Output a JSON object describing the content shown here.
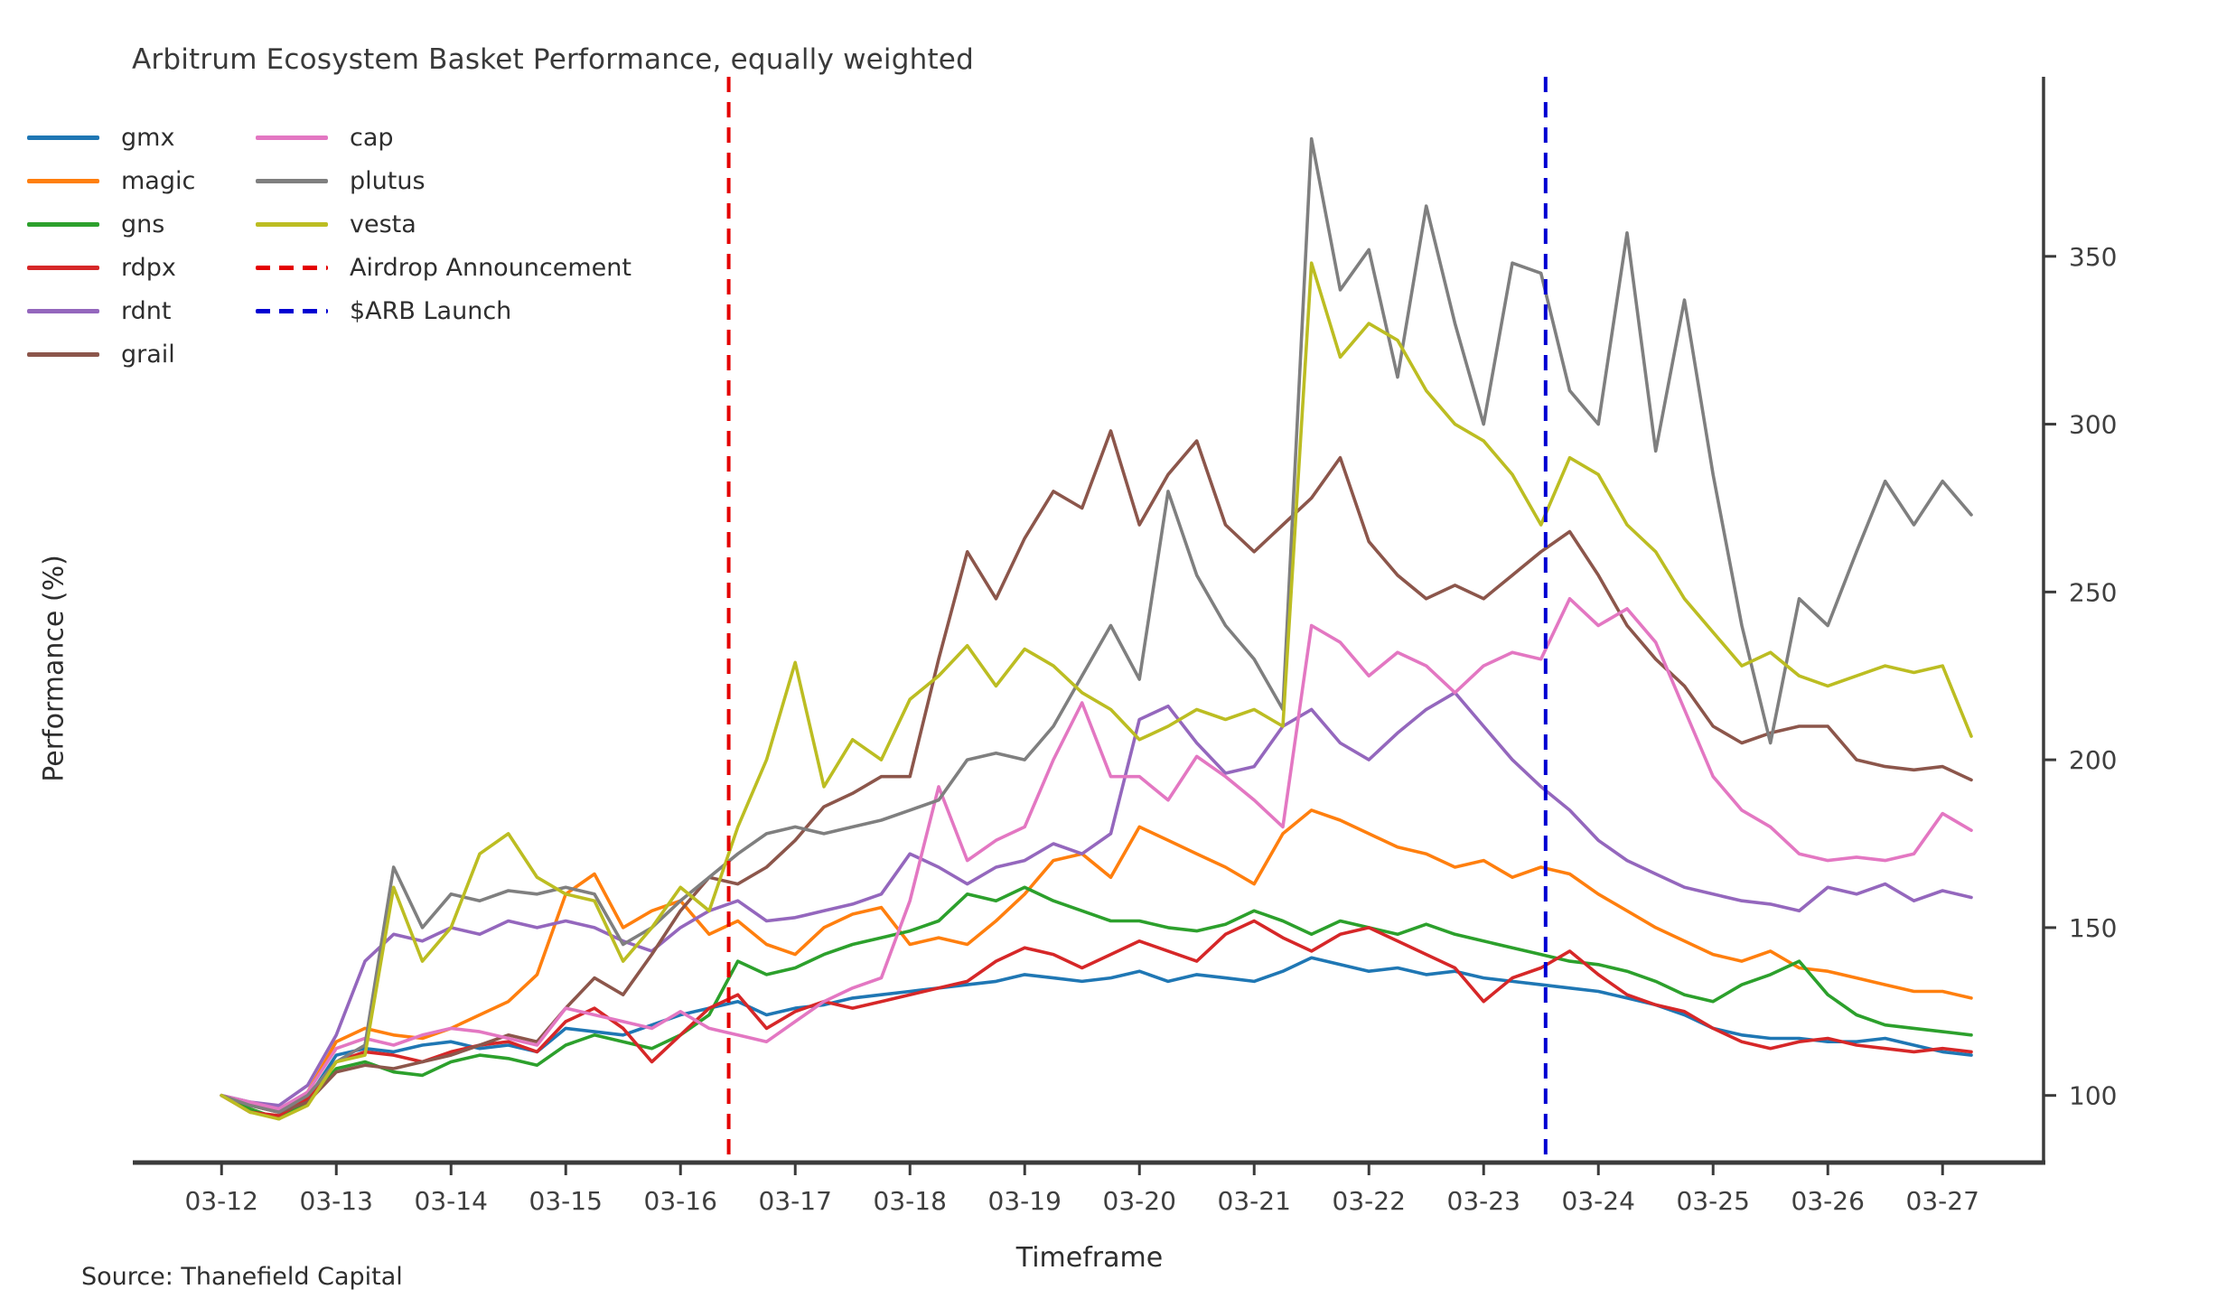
{
  "chart_data": {
    "type": "line",
    "title": "Arbitrum Ecosystem Basket Performance, equally weighted",
    "xlabel": "Timeframe",
    "ylabel": "Performance (%)",
    "source": "Source: Thanefield Capital",
    "x_tick_labels": [
      "03-12",
      "03-13",
      "03-14",
      "03-15",
      "03-16",
      "03-17",
      "03-18",
      "03-19",
      "03-20",
      "03-21",
      "03-22",
      "03-23",
      "03-24",
      "03-25",
      "03-26",
      "03-27"
    ],
    "y_tick_labels": [
      100,
      150,
      200,
      250,
      300,
      350
    ],
    "grid": false,
    "legend_position": "upper-left",
    "x_start_day": 0,
    "x_step_days": 0.25,
    "xlim_days": [
      -0.75,
      15.88
    ],
    "ylim": [
      80,
      403.5
    ],
    "axis_color": "#3b3b3b",
    "tick_label_color": "#3f3f3f",
    "series": [
      {
        "name": "gmx",
        "color": "#1f77b4",
        "values": [
          100,
          98,
          96,
          99,
          112,
          114,
          113,
          115,
          116,
          114,
          115,
          113,
          120,
          119,
          118,
          121,
          124,
          126,
          128,
          124,
          126,
          127,
          129,
          130,
          131,
          132,
          133,
          134,
          136,
          135,
          134,
          135,
          137,
          134,
          136,
          135,
          134,
          137,
          141,
          139,
          137,
          138,
          136,
          137,
          135,
          134,
          133,
          132,
          131,
          129,
          127,
          124,
          120,
          118,
          117,
          117,
          116,
          116,
          117,
          115,
          113,
          112
        ]
      },
      {
        "name": "magic",
        "color": "#ff7f0e",
        "values": [
          100,
          97,
          95,
          101,
          116,
          120,
          118,
          117,
          120,
          124,
          128,
          136,
          160,
          166,
          150,
          155,
          158,
          148,
          152,
          145,
          142,
          150,
          154,
          156,
          145,
          147,
          145,
          152,
          160,
          170,
          172,
          165,
          180,
          176,
          172,
          168,
          163,
          178,
          185,
          182,
          178,
          174,
          172,
          168,
          170,
          165,
          168,
          166,
          160,
          155,
          150,
          146,
          142,
          140,
          143,
          138,
          137,
          135,
          133,
          131,
          131,
          129
        ]
      },
      {
        "name": "gns",
        "color": "#2ca02c",
        "values": [
          100,
          96,
          93,
          98,
          108,
          110,
          107,
          106,
          110,
          112,
          111,
          109,
          115,
          118,
          116,
          114,
          118,
          124,
          140,
          136,
          138,
          142,
          145,
          147,
          149,
          152,
          160,
          158,
          162,
          158,
          155,
          152,
          152,
          150,
          149,
          151,
          155,
          152,
          148,
          152,
          150,
          148,
          151,
          148,
          146,
          144,
          142,
          140,
          139,
          137,
          134,
          130,
          128,
          133,
          136,
          140,
          130,
          124,
          121,
          120,
          119,
          118
        ]
      },
      {
        "name": "rdpx",
        "color": "#d62728",
        "values": [
          100,
          95,
          94,
          99,
          110,
          113,
          112,
          110,
          113,
          115,
          116,
          113,
          122,
          126,
          120,
          110,
          118,
          126,
          130,
          120,
          125,
          128,
          126,
          128,
          130,
          132,
          134,
          140,
          144,
          142,
          138,
          142,
          146,
          143,
          140,
          148,
          152,
          147,
          143,
          148,
          150,
          146,
          142,
          138,
          128,
          135,
          138,
          143,
          136,
          130,
          127,
          125,
          120,
          116,
          114,
          116,
          117,
          115,
          114,
          113,
          114,
          113
        ]
      },
      {
        "name": "rdnt",
        "color": "#9467bd",
        "values": [
          100,
          98,
          97,
          103,
          118,
          140,
          148,
          146,
          150,
          148,
          152,
          150,
          152,
          150,
          146,
          143,
          150,
          155,
          158,
          152,
          153,
          155,
          157,
          160,
          172,
          168,
          163,
          168,
          170,
          175,
          172,
          178,
          212,
          216,
          205,
          196,
          198,
          210,
          215,
          205,
          200,
          208,
          215,
          220,
          210,
          200,
          192,
          185,
          176,
          170,
          166,
          162,
          160,
          158,
          157,
          155,
          162,
          160,
          163,
          158,
          161,
          159
        ]
      },
      {
        "name": "grail",
        "color": "#8c564b",
        "values": [
          100,
          97,
          95,
          98,
          107,
          109,
          108,
          110,
          112,
          115,
          118,
          116,
          126,
          135,
          130,
          142,
          155,
          165,
          163,
          168,
          176,
          186,
          190,
          195,
          195,
          230,
          262,
          248,
          266,
          280,
          275,
          298,
          270,
          285,
          295,
          270,
          262,
          270,
          278,
          290,
          265,
          255,
          248,
          252,
          248,
          255,
          262,
          268,
          255,
          240,
          230,
          222,
          210,
          205,
          208,
          210,
          210,
          200,
          198,
          197,
          198,
          194
        ]
      },
      {
        "name": "cap",
        "color": "#e377c2",
        "values": [
          100,
          98,
          96,
          101,
          114,
          117,
          115,
          118,
          120,
          119,
          117,
          115,
          126,
          124,
          122,
          120,
          125,
          120,
          118,
          116,
          122,
          128,
          132,
          135,
          158,
          192,
          170,
          176,
          180,
          200,
          217,
          195,
          195,
          188,
          201,
          195,
          188,
          180,
          240,
          235,
          225,
          232,
          228,
          220,
          228,
          232,
          230,
          248,
          240,
          245,
          235,
          215,
          195,
          185,
          180,
          172,
          170,
          171,
          170,
          172,
          184,
          179
        ]
      },
      {
        "name": "plutus",
        "color": "#7f7f7f",
        "values": [
          100,
          97,
          95,
          100,
          110,
          115,
          168,
          150,
          160,
          158,
          161,
          160,
          162,
          160,
          145,
          150,
          158,
          165,
          172,
          178,
          180,
          178,
          180,
          182,
          185,
          188,
          200,
          202,
          200,
          210,
          225,
          240,
          224,
          280,
          255,
          240,
          230,
          215,
          385,
          340,
          352,
          314,
          365,
          330,
          300,
          348,
          345,
          310,
          300,
          357,
          292,
          337,
          285,
          240,
          205,
          248,
          240,
          262,
          283,
          270,
          283,
          273
        ]
      },
      {
        "name": "vesta",
        "color": "#bcbd22",
        "values": [
          100,
          95,
          93,
          97,
          110,
          112,
          162,
          140,
          150,
          172,
          178,
          165,
          160,
          158,
          140,
          150,
          162,
          155,
          180,
          200,
          229,
          192,
          206,
          200,
          218,
          225,
          234,
          222,
          233,
          228,
          220,
          215,
          206,
          210,
          215,
          212,
          215,
          210,
          348,
          320,
          330,
          325,
          310,
          300,
          295,
          285,
          270,
          290,
          285,
          270,
          262,
          248,
          238,
          228,
          232,
          225,
          222,
          225,
          228,
          226,
          228,
          207
        ]
      }
    ],
    "vlines": [
      {
        "label": "Airdrop Announcement",
        "color": "#e40000",
        "t_days": 4.42,
        "style": "dashed"
      },
      {
        "label": "$ARB Launch",
        "color": "#0000d2",
        "t_days": 11.54,
        "style": "dashed"
      }
    ]
  }
}
